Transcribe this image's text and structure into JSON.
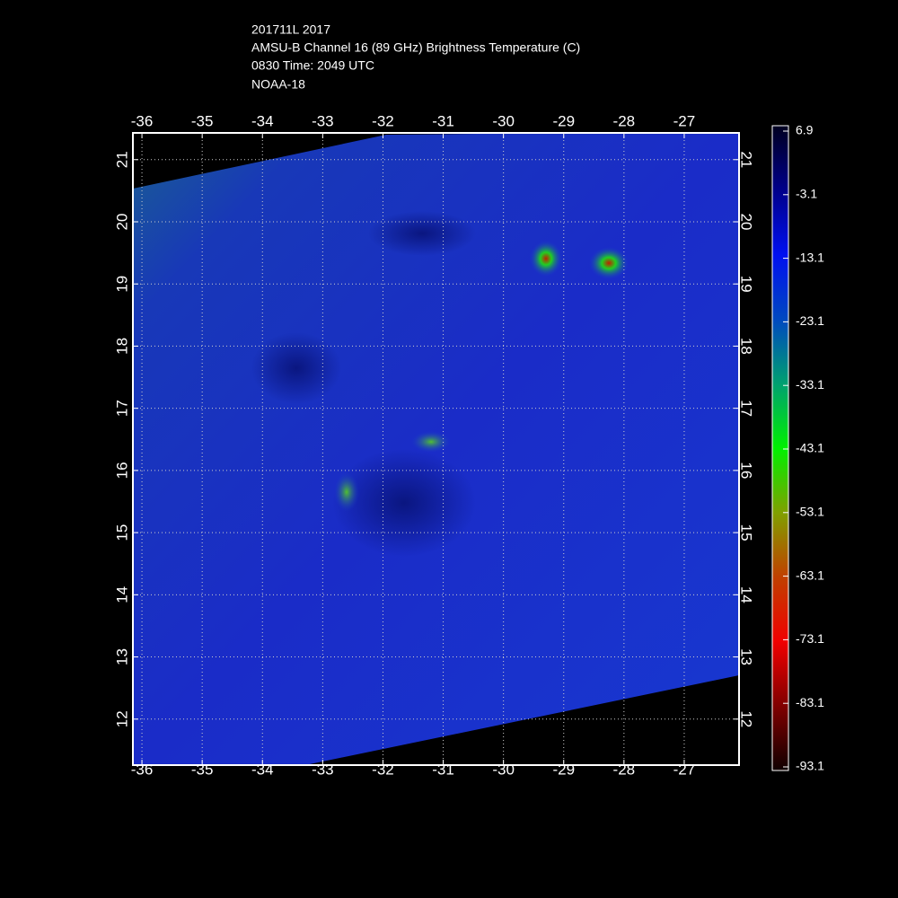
{
  "header": {
    "lines": [
      "201711L 2017",
      "AMSU-B Channel 16 (89 GHz) Brightness Temperature (C)",
      "0830 Time: 2049 UTC",
      "NOAA-18"
    ]
  },
  "map": {
    "xlim": [
      -36.15,
      -26.09
    ],
    "ylim": [
      11.26,
      21.43
    ],
    "xticks": [
      -36,
      -35,
      -34,
      -33,
      -32,
      -31,
      -30,
      -29,
      -28,
      -27
    ],
    "yticks": [
      12,
      13,
      14,
      15,
      16,
      17,
      18,
      19,
      20,
      21
    ]
  },
  "colorbar": {
    "lim": [
      -93.1,
      6.9
    ],
    "ticks": [
      6.9,
      -3.1,
      -13.1,
      -23.1,
      -33.1,
      -43.1,
      -53.1,
      -63.1,
      -73.1,
      -83.1,
      -93.1
    ]
  }
}
